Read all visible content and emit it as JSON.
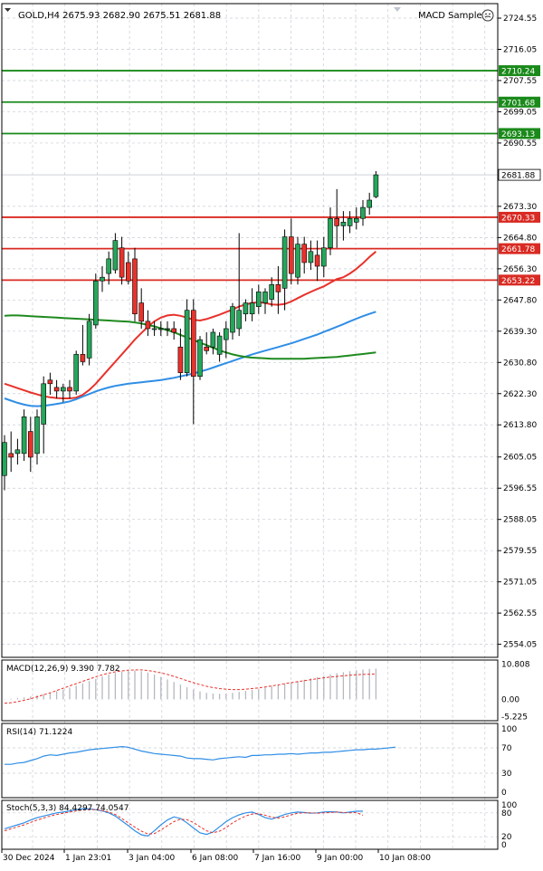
{
  "header": {
    "symbol_info": "GOLD,H4  2675.93 2682.90 2675.51 2681.88",
    "indicator_name": "MACD Sample",
    "indicator_icon": "smiley-face-icon"
  },
  "colors": {
    "bull": "#26a65b",
    "bear": "#e8322b",
    "grid": "#c8ccd4",
    "ma_red": "#e8322b",
    "ma_blue": "#2f8ee6",
    "ma_green": "#1f8a1f",
    "resistance": "#1a8a1a",
    "support": "#d92b23"
  },
  "chart_data": [
    {
      "type": "candlestick",
      "title": "GOLD,H4",
      "ylim": [
        2550.5,
        2728.5
      ],
      "y_ticks": [
        "2724.55",
        "2716.05",
        "2707.55",
        "2699.05",
        "2690.55",
        "2673.30",
        "2664.80",
        "2656.30",
        "2647.80",
        "2639.30",
        "2630.80",
        "2622.30",
        "2613.80",
        "2605.05",
        "2596.55",
        "2588.05",
        "2579.55",
        "2571.05",
        "2562.55",
        "2554.05"
      ],
      "current_price": "2681.88",
      "price_levels": [
        {
          "label": "2710.24",
          "value": 2710.24,
          "kind": "resistance"
        },
        {
          "label": "2701.68",
          "value": 2701.68,
          "kind": "resistance"
        },
        {
          "label": "2693.13",
          "value": 2693.13,
          "kind": "resistance"
        },
        {
          "label": "2670.33",
          "value": 2670.33,
          "kind": "support"
        },
        {
          "label": "2661.78",
          "value": 2661.78,
          "kind": "support"
        },
        {
          "label": "2653.22",
          "value": 2653.22,
          "kind": "support"
        }
      ],
      "candles": [
        {
          "o": 2600,
          "h": 2611,
          "l": 2596,
          "c": 2609
        },
        {
          "o": 2606,
          "h": 2612,
          "l": 2601,
          "c": 2605
        },
        {
          "o": 2606,
          "h": 2610,
          "l": 2603,
          "c": 2607
        },
        {
          "o": 2606,
          "h": 2618,
          "l": 2604,
          "c": 2616
        },
        {
          "o": 2612,
          "h": 2616,
          "l": 2601,
          "c": 2605
        },
        {
          "o": 2606,
          "h": 2618,
          "l": 2603,
          "c": 2616
        },
        {
          "o": 2614,
          "h": 2627,
          "l": 2606,
          "c": 2625
        },
        {
          "o": 2626,
          "h": 2628,
          "l": 2622,
          "c": 2625
        },
        {
          "o": 2624,
          "h": 2626,
          "l": 2621,
          "c": 2623
        },
        {
          "o": 2623,
          "h": 2625,
          "l": 2620,
          "c": 2624
        },
        {
          "o": 2624,
          "h": 2626,
          "l": 2621,
          "c": 2623
        },
        {
          "o": 2623,
          "h": 2634,
          "l": 2622,
          "c": 2633
        },
        {
          "o": 2633,
          "h": 2641,
          "l": 2630,
          "c": 2631
        },
        {
          "o": 2632,
          "h": 2644,
          "l": 2630,
          "c": 2642
        },
        {
          "o": 2641,
          "h": 2655,
          "l": 2640,
          "c": 2653
        },
        {
          "o": 2653,
          "h": 2657,
          "l": 2650,
          "c": 2654
        },
        {
          "o": 2655,
          "h": 2661,
          "l": 2652,
          "c": 2659
        },
        {
          "o": 2656,
          "h": 2666,
          "l": 2655,
          "c": 2664
        },
        {
          "o": 2662,
          "h": 2665,
          "l": 2652,
          "c": 2654
        },
        {
          "o": 2658,
          "h": 2661,
          "l": 2652,
          "c": 2653
        },
        {
          "o": 2659,
          "h": 2662,
          "l": 2642,
          "c": 2644
        },
        {
          "o": 2647,
          "h": 2651,
          "l": 2640,
          "c": 2642
        },
        {
          "o": 2642,
          "h": 2645,
          "l": 2638,
          "c": 2640
        },
        {
          "o": 2640,
          "h": 2642,
          "l": 2638,
          "c": 2640
        },
        {
          "o": 2640,
          "h": 2642,
          "l": 2638,
          "c": 2640
        },
        {
          "o": 2640,
          "h": 2642,
          "l": 2638,
          "c": 2640
        },
        {
          "o": 2640,
          "h": 2642,
          "l": 2637,
          "c": 2639
        },
        {
          "o": 2635,
          "h": 2640,
          "l": 2626,
          "c": 2628
        },
        {
          "o": 2628,
          "h": 2648,
          "l": 2627,
          "c": 2645
        },
        {
          "o": 2645,
          "h": 2648,
          "l": 2614,
          "c": 2627
        },
        {
          "o": 2627,
          "h": 2638,
          "l": 2626,
          "c": 2637
        },
        {
          "o": 2635,
          "h": 2639,
          "l": 2633,
          "c": 2634
        },
        {
          "o": 2635,
          "h": 2640,
          "l": 2633,
          "c": 2639
        },
        {
          "o": 2633,
          "h": 2639,
          "l": 2631,
          "c": 2638
        },
        {
          "o": 2637,
          "h": 2642,
          "l": 2632,
          "c": 2640
        },
        {
          "o": 2639,
          "h": 2647,
          "l": 2637,
          "c": 2646
        },
        {
          "o": 2640,
          "h": 2666,
          "l": 2638,
          "c": 2645
        },
        {
          "o": 2644,
          "h": 2648,
          "l": 2642,
          "c": 2647
        },
        {
          "o": 2644,
          "h": 2651,
          "l": 2642,
          "c": 2647
        },
        {
          "o": 2646,
          "h": 2652,
          "l": 2644,
          "c": 2650
        },
        {
          "o": 2647,
          "h": 2651,
          "l": 2644,
          "c": 2650
        },
        {
          "o": 2648,
          "h": 2654,
          "l": 2646,
          "c": 2652
        },
        {
          "o": 2652,
          "h": 2657,
          "l": 2644,
          "c": 2650
        },
        {
          "o": 2651,
          "h": 2667,
          "l": 2645,
          "c": 2665
        },
        {
          "o": 2665,
          "h": 2670,
          "l": 2652,
          "c": 2655
        },
        {
          "o": 2654,
          "h": 2665,
          "l": 2652,
          "c": 2663
        },
        {
          "o": 2663,
          "h": 2665,
          "l": 2655,
          "c": 2658
        },
        {
          "o": 2658,
          "h": 2664,
          "l": 2656,
          "c": 2661
        },
        {
          "o": 2660,
          "h": 2664,
          "l": 2653,
          "c": 2657
        },
        {
          "o": 2657,
          "h": 2665,
          "l": 2654,
          "c": 2662
        },
        {
          "o": 2662,
          "h": 2673,
          "l": 2660,
          "c": 2670
        },
        {
          "o": 2670,
          "h": 2678,
          "l": 2662,
          "c": 2668
        },
        {
          "o": 2668,
          "h": 2672,
          "l": 2664,
          "c": 2669
        },
        {
          "o": 2668,
          "h": 2672,
          "l": 2666,
          "c": 2670
        },
        {
          "o": 2669,
          "h": 2673,
          "l": 2667,
          "c": 2670
        },
        {
          "o": 2670,
          "h": 2675,
          "l": 2668,
          "c": 2673
        },
        {
          "o": 2673,
          "h": 2677,
          "l": 2671,
          "c": 2675
        },
        {
          "o": 2675.93,
          "h": 2682.9,
          "l": 2675.51,
          "c": 2681.88
        }
      ],
      "series": [
        {
          "color_key": "ma_red",
          "values": [
            2625,
            2624.4,
            2623.8,
            2623.2,
            2622.6,
            2622.1,
            2621.6,
            2621.3,
            2621.1,
            2621,
            2621,
            2621.2,
            2622,
            2623.3,
            2625,
            2627,
            2629,
            2631,
            2633,
            2635,
            2637,
            2638.8,
            2640.5,
            2642,
            2643,
            2643.6,
            2643.8,
            2643.5,
            2643,
            2642.4,
            2642.2,
            2642.6,
            2643.2,
            2643.8,
            2644.5,
            2645.2,
            2646,
            2646.6,
            2647,
            2647.2,
            2647,
            2646.6,
            2646.5,
            2646.7,
            2647.4,
            2648.3,
            2649.2,
            2650,
            2650.8,
            2651.5,
            2652.5,
            2653.5,
            2654,
            2655,
            2656.3,
            2657.8,
            2659.5,
            2661
          ]
        },
        {
          "color_key": "ma_blue",
          "values": [
            2621,
            2620.4,
            2619.8,
            2619.3,
            2619,
            2618.9,
            2619,
            2619.2,
            2619.5,
            2619.8,
            2620.2,
            2620.8,
            2621.5,
            2622.2,
            2622.9,
            2623.5,
            2624,
            2624.4,
            2624.7,
            2625,
            2625.2,
            2625.4,
            2625.6,
            2625.8,
            2626,
            2626.3,
            2626.6,
            2627,
            2627.4,
            2627.8,
            2628.3,
            2628.8,
            2629.4,
            2630,
            2630.6,
            2631.2,
            2631.8,
            2632.4,
            2633,
            2633.5,
            2634,
            2634.5,
            2635,
            2635.5,
            2636,
            2636.6,
            2637.2,
            2637.8,
            2638.4,
            2639.1,
            2639.8,
            2640.5,
            2641.2,
            2642,
            2642.7,
            2643.4,
            2644,
            2644.6
          ]
        },
        {
          "color_key": "ma_green",
          "values": [
            2643.5,
            2643.6,
            2643.6,
            2643.5,
            2643.4,
            2643.3,
            2643.2,
            2643.1,
            2643,
            2642.9,
            2642.8,
            2642.7,
            2642.6,
            2642.5,
            2642.4,
            2642.3,
            2642.2,
            2642.1,
            2642,
            2641.9,
            2641.7,
            2641.4,
            2641,
            2640.6,
            2640.1,
            2639.6,
            2639,
            2638.3,
            2637.6,
            2636.9,
            2636.2,
            2635.5,
            2634.8,
            2634.1,
            2633.5,
            2633,
            2632.6,
            2632.3,
            2632.1,
            2632,
            2631.9,
            2631.8,
            2631.8,
            2631.8,
            2631.8,
            2631.8,
            2631.8,
            2631.9,
            2632,
            2632.1,
            2632.2,
            2632.3,
            2632.5,
            2632.7,
            2632.9,
            2633.1,
            2633.3,
            2633.5
          ]
        }
      ]
    },
    {
      "type": "histogram+line",
      "title": "MACD(12,26,9) 9.390 7.782",
      "ylim": [
        -6.5,
        12
      ],
      "y_ticks": [
        "10.808",
        "0.00",
        "-5.225"
      ],
      "histogram": [
        0.1,
        0.2,
        0.4,
        0.6,
        0.9,
        1.2,
        1.6,
        2,
        2.5,
        3,
        3.6,
        4.2,
        4.9,
        5.6,
        6.3,
        7,
        7.6,
        8.1,
        8.5,
        8.7,
        8.8,
        8.6,
        8.2,
        7.6,
        6.9,
        6.1,
        5.3,
        4.5,
        3.7,
        3,
        2.4,
        2,
        1.8,
        1.7,
        1.8,
        2,
        2.3,
        2.6,
        2.9,
        3.2,
        3.6,
        4,
        4.4,
        4.8,
        5.2,
        5.6,
        6,
        6.4,
        6.8,
        7.2,
        7.6,
        8,
        8.3,
        8.6,
        8.9,
        9.1,
        9.3,
        9.39
      ],
      "signal": [
        -1.2,
        -1,
        -0.7,
        -0.3,
        0.2,
        0.8,
        1.4,
        2,
        2.7,
        3.4,
        4.1,
        4.8,
        5.5,
        6.2,
        6.9,
        7.5,
        8,
        8.4,
        8.7,
        8.9,
        9,
        9,
        8.8,
        8.5,
        8.1,
        7.6,
        7,
        6.4,
        5.7,
        5.1,
        4.5,
        4,
        3.6,
        3.3,
        3.1,
        3,
        3,
        3.1,
        3.3,
        3.5,
        3.8,
        4.1,
        4.4,
        4.8,
        5.1,
        5.4,
        5.7,
        6,
        6.3,
        6.6,
        6.8,
        7,
        7.2,
        7.4,
        7.5,
        7.6,
        7.7,
        7.782
      ]
    },
    {
      "type": "line",
      "title": "RSI(14) 71.1224",
      "ylim": [
        0,
        100
      ],
      "y_ticks": [
        "100",
        "70",
        "30",
        "0"
      ],
      "values": [
        44,
        44,
        46,
        47,
        50,
        53,
        57,
        59,
        58,
        60,
        62,
        63,
        65,
        67,
        68,
        69,
        70,
        71,
        72,
        71,
        68,
        65,
        63,
        61,
        60,
        59,
        58,
        57,
        54,
        53,
        53,
        52,
        51,
        53,
        54,
        55,
        56,
        55,
        58,
        58,
        59,
        59,
        60,
        60,
        61,
        60,
        61,
        62,
        62,
        63,
        63,
        64,
        65,
        66,
        67,
        67,
        68,
        68,
        69,
        70,
        71.1224
      ]
    },
    {
      "type": "line",
      "title": "Stoch(5,3,3) 84.4297 74.0547",
      "ylim": [
        0,
        100
      ],
      "y_ticks": [
        "100",
        "80",
        "20",
        "0"
      ],
      "k": [
        40,
        45,
        50,
        55,
        62,
        68,
        72,
        76,
        80,
        82,
        85,
        88,
        90,
        90,
        88,
        85,
        80,
        72,
        60,
        48,
        35,
        25,
        22,
        35,
        50,
        62,
        70,
        66,
        55,
        42,
        30,
        26,
        32,
        45,
        58,
        68,
        75,
        80,
        82,
        76,
        68,
        64,
        70,
        76,
        80,
        82,
        81,
        79,
        80,
        82,
        83,
        82,
        80,
        82,
        84,
        84.4297
      ],
      "d": [
        35,
        40,
        45,
        50,
        56,
        62,
        67,
        72,
        76,
        79,
        82,
        85,
        87,
        88,
        88,
        86,
        82,
        76,
        66,
        55,
        44,
        34,
        27,
        28,
        37,
        48,
        58,
        64,
        63,
        56,
        45,
        35,
        30,
        34,
        43,
        55,
        64,
        72,
        77,
        78,
        74,
        69,
        67,
        70,
        75,
        79,
        80,
        80,
        79,
        80,
        81,
        82,
        81,
        80,
        81,
        74.0547
      ]
    }
  ],
  "x_axis": {
    "labels": [
      "30 Dec 2024",
      "1 Jan 23:01",
      "3 Jan 04:00",
      "6 Jan 08:00",
      "7 Jan 16:00",
      "9 Jan 00:00",
      "10 Jan 08:00"
    ]
  }
}
